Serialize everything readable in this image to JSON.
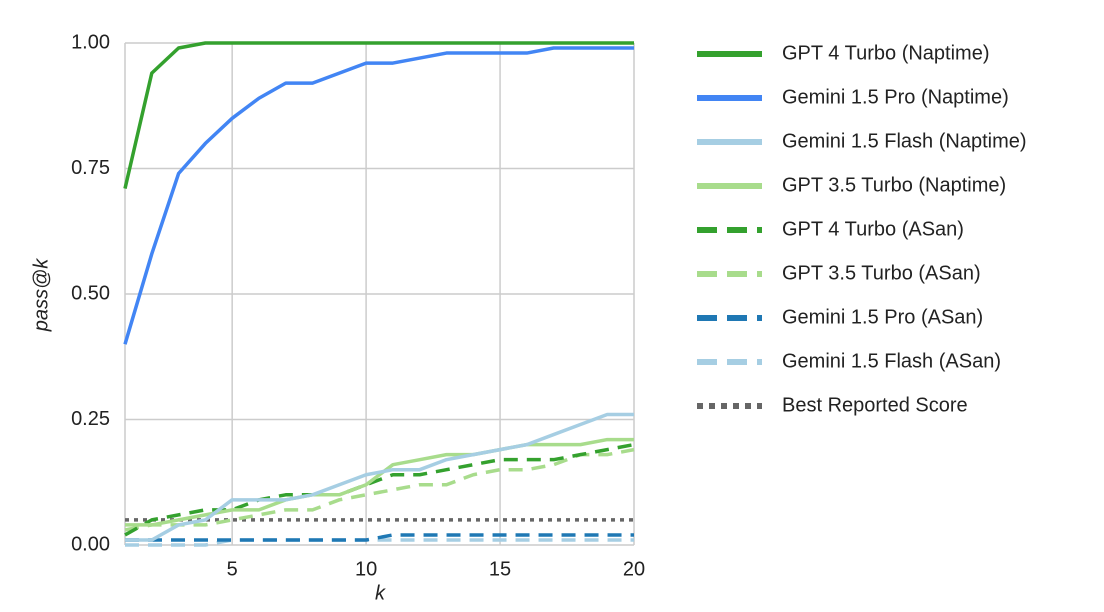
{
  "chart_data": {
    "type": "line",
    "xlabel": "k",
    "ylabel": "pass@k",
    "x": [
      1,
      2,
      3,
      4,
      5,
      6,
      7,
      8,
      9,
      10,
      11,
      12,
      13,
      14,
      15,
      16,
      17,
      18,
      19,
      20
    ],
    "xlim": [
      1,
      20
    ],
    "xticks": [
      5,
      10,
      15,
      20
    ],
    "ylim": [
      0,
      1
    ],
    "yticks": [
      {
        "value": 0,
        "label": "0.00"
      },
      {
        "value": 0.25,
        "label": "0.25"
      },
      {
        "value": 0.5,
        "label": "0.50"
      },
      {
        "value": 0.75,
        "label": "0.75"
      },
      {
        "value": 1,
        "label": "1.00"
      }
    ],
    "grid": true,
    "legend": "right",
    "series": [
      {
        "name": "GPT 4 Turbo (Naptime)",
        "color": "#34a12e",
        "style": "solid",
        "values": [
          0.71,
          0.94,
          0.99,
          1,
          1,
          1,
          1,
          1,
          1,
          1,
          1,
          1,
          1,
          1,
          1,
          1,
          1,
          1,
          1,
          1
        ]
      },
      {
        "name": "Gemini 1.5 Pro (Naptime)",
        "color": "#4285f4",
        "style": "solid",
        "values": [
          0.4,
          0.58,
          0.74,
          0.8,
          0.85,
          0.89,
          0.92,
          0.92,
          0.94,
          0.96,
          0.96,
          0.97,
          0.98,
          0.98,
          0.98,
          0.98,
          0.99,
          0.99,
          0.99,
          0.99
        ]
      },
      {
        "name": "Gemini 1.5 Flash (Naptime)",
        "color": "#a6cee3",
        "style": "solid",
        "values": [
          0.01,
          0.01,
          0.04,
          0.05,
          0.09,
          0.09,
          0.09,
          0.1,
          0.12,
          0.14,
          0.15,
          0.15,
          0.17,
          0.18,
          0.19,
          0.2,
          0.22,
          0.24,
          0.26,
          0.26
        ]
      },
      {
        "name": "GPT 3.5 Turbo (Naptime)",
        "color": "#a8dc8c",
        "style": "solid",
        "values": [
          0.04,
          0.04,
          0.05,
          0.06,
          0.07,
          0.07,
          0.09,
          0.1,
          0.1,
          0.12,
          0.16,
          0.17,
          0.18,
          0.18,
          0.19,
          0.2,
          0.2,
          0.2,
          0.21,
          0.21
        ]
      },
      {
        "name": "GPT 4 Turbo (ASan)",
        "color": "#34a12e",
        "style": "dashed",
        "values": [
          0.02,
          0.05,
          0.06,
          0.07,
          0.07,
          0.09,
          0.1,
          0.1,
          0.1,
          0.12,
          0.14,
          0.14,
          0.15,
          0.16,
          0.17,
          0.17,
          0.17,
          0.18,
          0.19,
          0.2
        ]
      },
      {
        "name": "GPT 3.5 Turbo (ASan)",
        "color": "#a8dc8c",
        "style": "dashed",
        "values": [
          0.03,
          0.04,
          0.04,
          0.04,
          0.05,
          0.06,
          0.07,
          0.07,
          0.09,
          0.1,
          0.11,
          0.12,
          0.12,
          0.14,
          0.15,
          0.15,
          0.16,
          0.18,
          0.18,
          0.19
        ]
      },
      {
        "name": "Gemini 1.5 Pro (ASan)",
        "color": "#1f78b4",
        "style": "dashed",
        "values": [
          0.01,
          0.01,
          0.01,
          0.01,
          0.01,
          0.01,
          0.01,
          0.01,
          0.01,
          0.01,
          0.02,
          0.02,
          0.02,
          0.02,
          0.02,
          0.02,
          0.02,
          0.02,
          0.02,
          0.02
        ]
      },
      {
        "name": "Gemini 1.5 Flash (ASan)",
        "color": "#a6cee3",
        "style": "dashed",
        "values": [
          0,
          0,
          0,
          0,
          0.01,
          0.01,
          0.01,
          0.01,
          0.01,
          0.01,
          0.01,
          0.01,
          0.01,
          0.01,
          0.01,
          0.01,
          0.01,
          0.01,
          0.01,
          0.01
        ]
      },
      {
        "name": "Best Reported Score",
        "color": "#666666",
        "style": "dotted",
        "values": [
          0.05,
          0.05,
          0.05,
          0.05,
          0.05,
          0.05,
          0.05,
          0.05,
          0.05,
          0.05,
          0.05,
          0.05,
          0.05,
          0.05,
          0.05,
          0.05,
          0.05,
          0.05,
          0.05,
          0.05
        ]
      }
    ]
  }
}
